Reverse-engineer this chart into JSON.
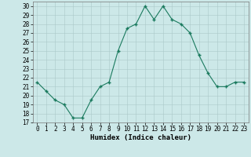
{
  "x": [
    0,
    1,
    2,
    3,
    4,
    5,
    6,
    7,
    8,
    9,
    10,
    11,
    12,
    13,
    14,
    15,
    16,
    17,
    18,
    19,
    20,
    21,
    22,
    23
  ],
  "y": [
    21.5,
    20.5,
    19.5,
    19.0,
    17.5,
    17.5,
    19.5,
    21.0,
    21.5,
    25.0,
    27.5,
    28.0,
    30.0,
    28.5,
    30.0,
    28.5,
    28.0,
    27.0,
    24.5,
    22.5,
    21.0,
    21.0,
    21.5,
    21.5
  ],
  "xlabel": "Humidex (Indice chaleur)",
  "ylim": [
    17,
    30.5
  ],
  "xlim": [
    -0.5,
    23.5
  ],
  "yticks": [
    17,
    18,
    19,
    20,
    21,
    22,
    23,
    24,
    25,
    26,
    27,
    28,
    29,
    30
  ],
  "xticks": [
    0,
    1,
    2,
    3,
    4,
    5,
    6,
    7,
    8,
    9,
    10,
    11,
    12,
    13,
    14,
    15,
    16,
    17,
    18,
    19,
    20,
    21,
    22,
    23
  ],
  "line_color": "#1a7a5e",
  "marker_color": "#1a7a5e",
  "bg_color": "#cce8e8",
  "grid_color": "#aac8c8",
  "tick_fontsize": 5.5,
  "xlabel_fontsize": 6.5
}
